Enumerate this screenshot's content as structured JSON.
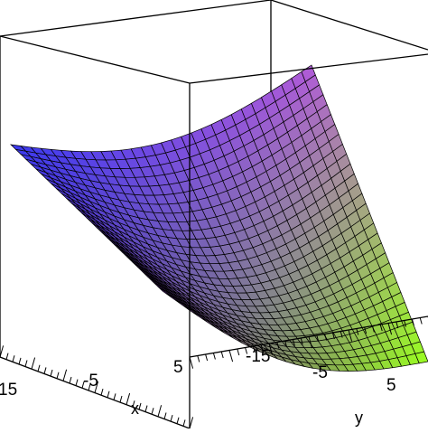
{
  "chart_data": {
    "type": "surface",
    "title": "",
    "x_axis": {
      "label": "x",
      "tick_labels": [
        "15",
        "-5",
        "5"
      ]
    },
    "y_axis": {
      "label": "y",
      "tick_labels": [
        "-15",
        "-5",
        "5"
      ]
    },
    "surface": {
      "shape": "saddle",
      "grid": "wireframe mesh",
      "colors": {
        "blue_corner": "#3a3af0",
        "magenta_corner": "#b05ad8",
        "purple_corner": "#6a2a9a",
        "green_corner": "#9aff20",
        "mesh_line": "#000000"
      }
    },
    "box": {
      "visible": true,
      "color": "#000000"
    }
  }
}
